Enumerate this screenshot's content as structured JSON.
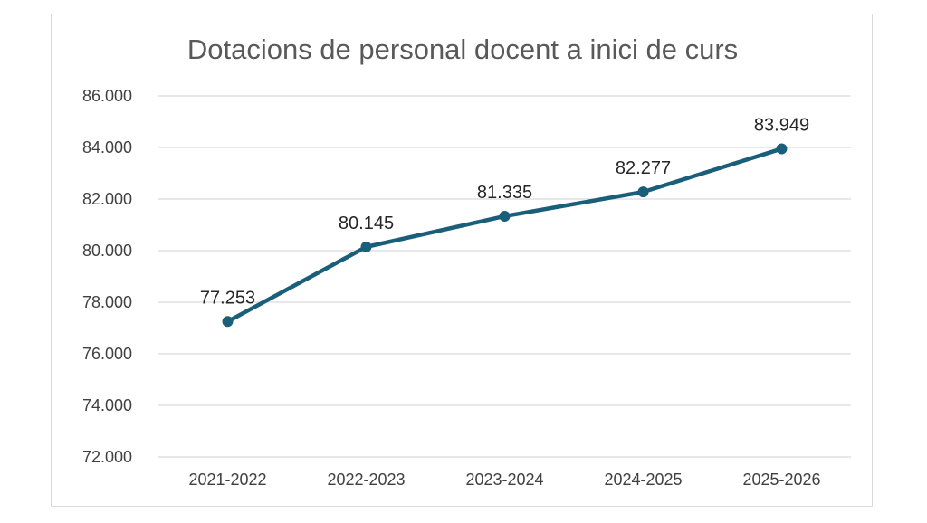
{
  "chart_data": {
    "type": "line",
    "title": "Dotacions de personal docent a inici de curs",
    "xlabel": "",
    "ylabel": "",
    "categories": [
      "2021-2022",
      "2022-2023",
      "2023-2024",
      "2024-2025",
      "2025-2026"
    ],
    "series": [
      {
        "values": [
          77253,
          80145,
          81335,
          82277,
          83949
        ],
        "color": "#1a5f7a"
      }
    ],
    "data_labels": [
      "77.253",
      "80.145",
      "81.335",
      "82.277",
      "83.949"
    ],
    "ylim": [
      72000,
      86000
    ],
    "y_ticks": [
      72000,
      74000,
      76000,
      78000,
      80000,
      82000,
      84000,
      86000
    ],
    "y_tick_labels": [
      "72.000",
      "74.000",
      "76.000",
      "78.000",
      "80.000",
      "82.000",
      "84.000",
      "86.000"
    ],
    "grid": true,
    "legend": "none"
  }
}
